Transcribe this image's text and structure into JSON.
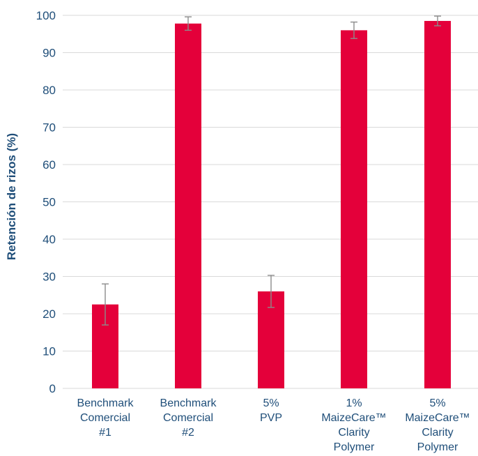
{
  "chart_data": {
    "type": "bar",
    "title": "",
    "xlabel": "",
    "ylabel": "Retención de rizos (%)",
    "ylim": [
      0,
      100
    ],
    "yticks": [
      0,
      10,
      20,
      30,
      40,
      50,
      60,
      70,
      80,
      90,
      100
    ],
    "grid": true,
    "legend": "none",
    "categories": [
      [
        "Benchmark",
        "Comercial",
        "#1"
      ],
      [
        "Benchmark",
        "Comercial",
        "#2"
      ],
      [
        "5%",
        "PVP"
      ],
      [
        "1%",
        "MaizeCare™",
        "Clarity",
        "Polymer"
      ],
      [
        "5%",
        "MaizeCare™",
        "Clarity",
        "Polymer"
      ]
    ],
    "values": [
      22.5,
      97.8,
      26.0,
      96.0,
      98.5
    ],
    "errors": [
      5.5,
      1.8,
      4.3,
      2.2,
      1.3
    ],
    "colors": {
      "bar": "#e4003a",
      "error_bar": "#8c8c8c",
      "grid": "#d9d9d9",
      "text": "#1f4e79"
    }
  }
}
